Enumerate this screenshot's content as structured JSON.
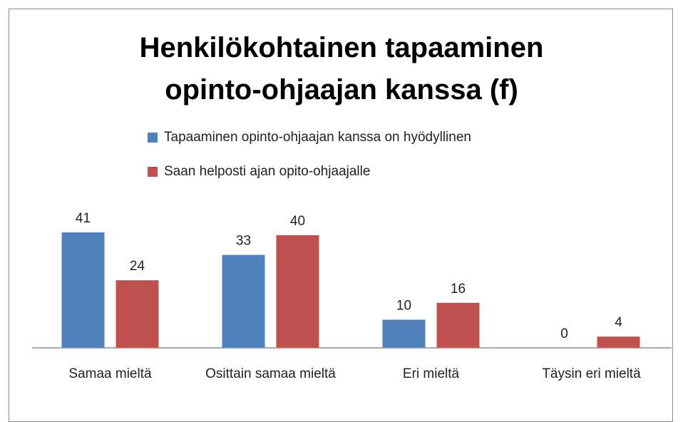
{
  "chart_data": {
    "type": "bar",
    "title": "Henkilökohtainen tapaaminen opinto-ohjaajan kanssa (f)",
    "categories": [
      "Samaa mieltä",
      "Osittain samaa mieltä",
      "Eri mieltä",
      "Täysin eri mieltä"
    ],
    "series": [
      {
        "name": "Tapaaminen opinto-ohjaajan kanssa on hyödyllinen",
        "color": "#4f81bd",
        "values": [
          41,
          33,
          10,
          0
        ]
      },
      {
        "name": "Saan helposti ajan opito-ohjaajalle",
        "color": "#c0504d",
        "values": [
          24,
          40,
          16,
          4
        ]
      }
    ],
    "legend": "top"
  }
}
